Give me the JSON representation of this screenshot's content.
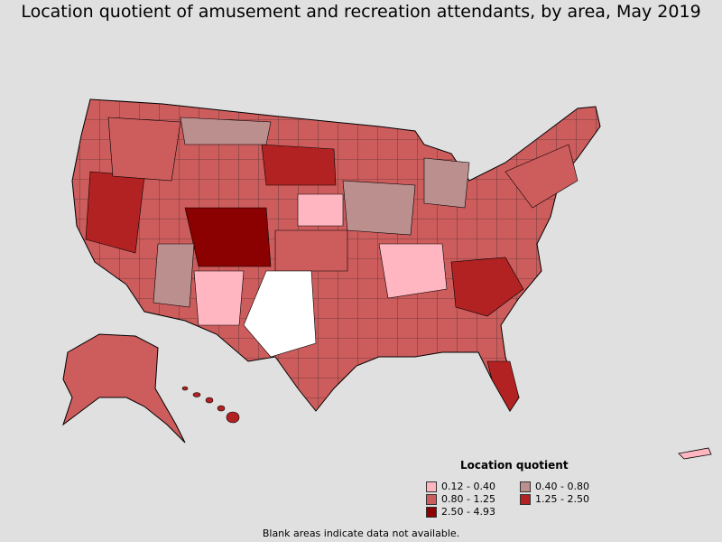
{
  "title": "Location quotient of amusement and recreation attendants, by area, May 2019",
  "legend": {
    "title": "Location quotient",
    "items": [
      {
        "label": "0.12 - 0.40",
        "color": "#ffb6c1"
      },
      {
        "label": "0.40 - 0.80",
        "color": "#bc8f8f"
      },
      {
        "label": "0.80 - 1.25",
        "color": "#cd5c5c"
      },
      {
        "label": "1.25 - 2.50",
        "color": "#b22222"
      },
      {
        "label": "2.50 - 4.93",
        "color": "#8b0000"
      }
    ]
  },
  "footnote": "Blank areas indicate data not available.",
  "colors": {
    "background": "#e0e0e0",
    "no_data": "#ffffff",
    "border": "#000000"
  }
}
